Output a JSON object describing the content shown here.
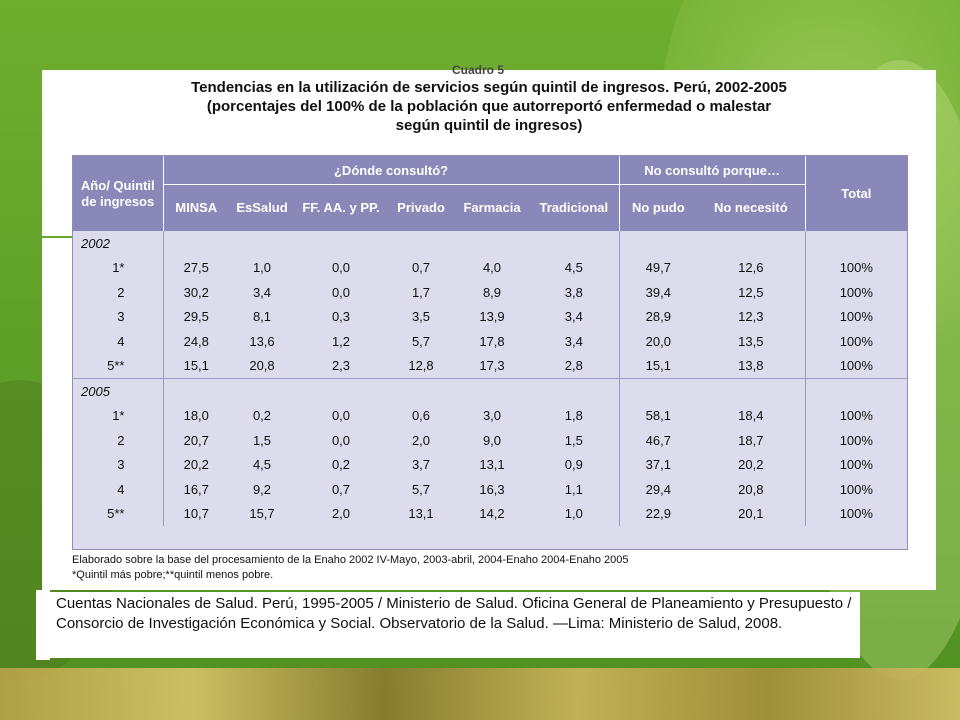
{
  "title": {
    "cutoff": "Cuadro 5",
    "line1": "Tendencias en la utilización de servicios según quintil de ingresos. Perú, 2002-2005",
    "line2": "(porcentajes del 100% de la población que autorreportó enfermedad o malestar",
    "line3": "según quintil de ingresos)"
  },
  "table": {
    "header": {
      "year_quintil": "Año/ Quintil de ingresos",
      "donde": "¿Dónde consultó?",
      "no_consulto": "No consultó porque…",
      "total": "Total",
      "cols": [
        "MINSA",
        "EsSalud",
        "FF. AA. y PP.",
        "Privado",
        "Farmacia",
        "Tradicional",
        "No pudo",
        "No necesitó"
      ]
    },
    "groups": [
      {
        "year": "2002",
        "rows": [
          {
            "q": "1*",
            "v": [
              "27,5",
              "1,0",
              "0,0",
              "0,7",
              "4,0",
              "4,5",
              "49,7",
              "12,6"
            ],
            "t": "100%"
          },
          {
            "q": "2",
            "v": [
              "30,2",
              "3,4",
              "0,0",
              "1,7",
              "8,9",
              "3,8",
              "39,4",
              "12,5"
            ],
            "t": "100%"
          },
          {
            "q": "3",
            "v": [
              "29,5",
              "8,1",
              "0,3",
              "3,5",
              "13,9",
              "3,4",
              "28,9",
              "12,3"
            ],
            "t": "100%"
          },
          {
            "q": "4",
            "v": [
              "24,8",
              "13,6",
              "1,2",
              "5,7",
              "17,8",
              "3,4",
              "20,0",
              "13,5"
            ],
            "t": "100%"
          },
          {
            "q": "5**",
            "v": [
              "15,1",
              "20,8",
              "2,3",
              "12,8",
              "17,3",
              "2,8",
              "15,1",
              "13,8"
            ],
            "t": "100%"
          }
        ]
      },
      {
        "year": "2005",
        "rows": [
          {
            "q": "1*",
            "v": [
              "18,0",
              "0,2",
              "0,0",
              "0,6",
              "3,0",
              "1,8",
              "58,1",
              "18,4"
            ],
            "t": "100%"
          },
          {
            "q": "2",
            "v": [
              "20,7",
              "1,5",
              "0,0",
              "2,0",
              "9,0",
              "1,5",
              "46,7",
              "18,7"
            ],
            "t": "100%"
          },
          {
            "q": "3",
            "v": [
              "20,2",
              "4,5",
              "0,2",
              "3,7",
              "13,1",
              "0,9",
              "37,1",
              "20,2"
            ],
            "t": "100%"
          },
          {
            "q": "4",
            "v": [
              "16,7",
              "9,2",
              "0,7",
              "5,7",
              "16,3",
              "1,1",
              "29,4",
              "20,8"
            ],
            "t": "100%"
          },
          {
            "q": "5**",
            "v": [
              "10,7",
              "15,7",
              "2,0",
              "13,1",
              "14,2",
              "1,0",
              "22,9",
              "20,1"
            ],
            "t": "100%"
          }
        ]
      }
    ]
  },
  "notes": {
    "line1": "Elaborado sobre la base del procesamiento de la Enaho 2002 IV-Mayo, 2003-abril, 2004-Enaho 2004-Enaho 2005",
    "line2": "*Quintil más pobre;**quintil menos pobre."
  },
  "citation": "Cuentas Nacionales de Salud. Perú, 1995-2005 / Ministerio de Salud. Oficina General de Planeamiento y Presupuesto / Consorcio de Investigación Económica y Social. Observatorio de la Salud. —Lima: Ministerio de Salud, 2008.",
  "colors": {
    "background_green": "#5fa02e",
    "header_purple": "#8a88b8",
    "table_fill": "#dcdcec"
  }
}
